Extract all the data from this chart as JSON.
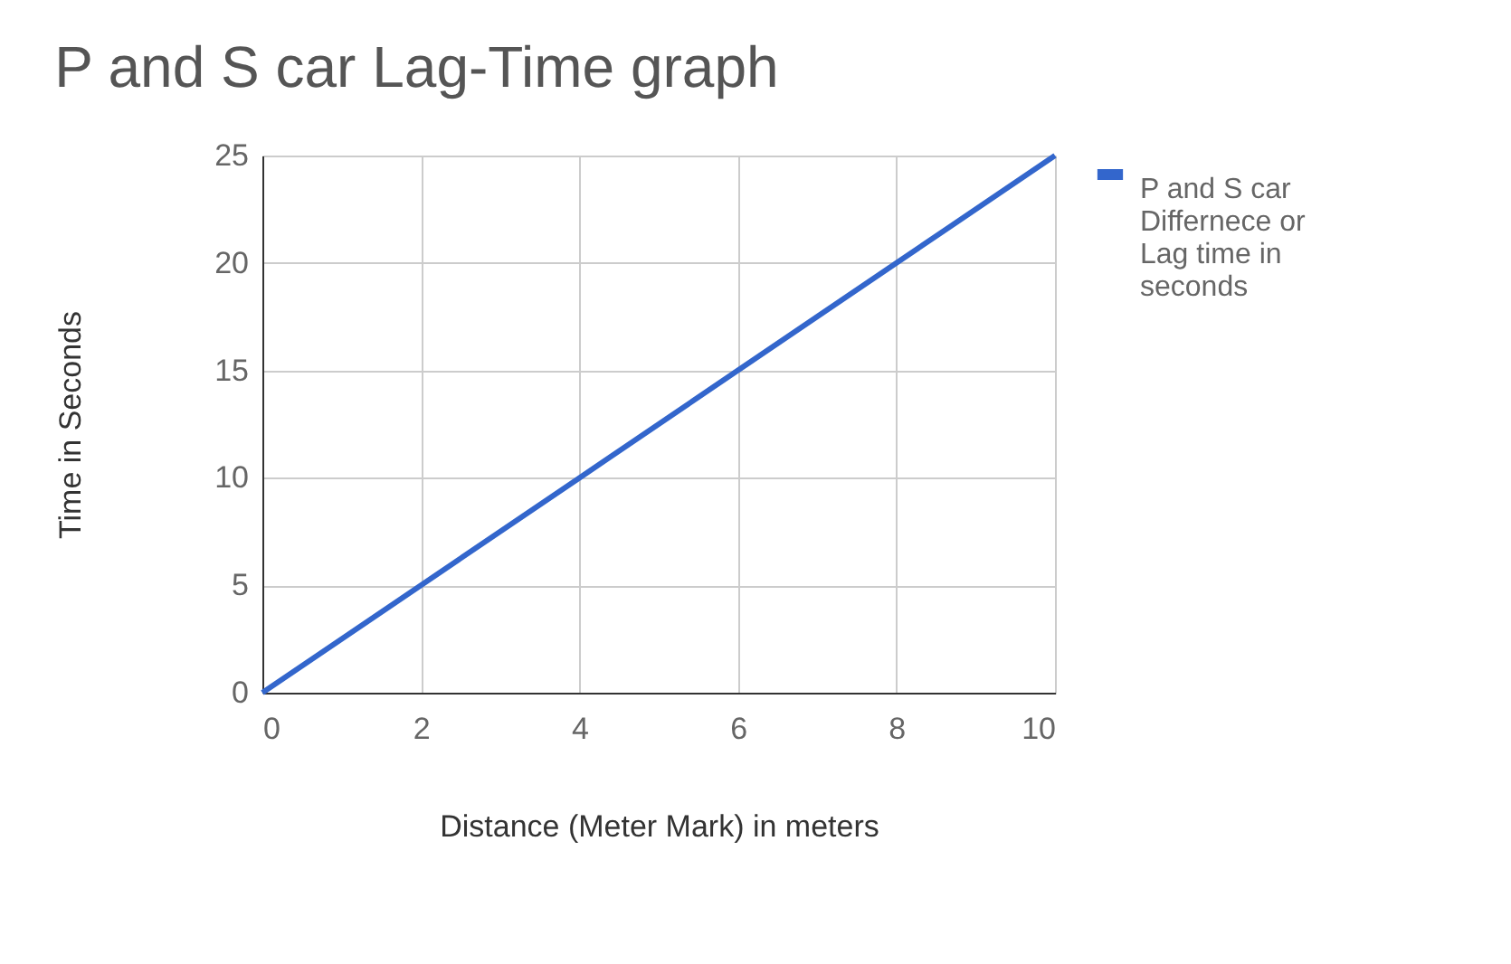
{
  "chart_data": {
    "type": "line",
    "title": "P and S car Lag-Time graph",
    "xlabel": "Distance (Meter Mark) in meters",
    "ylabel": "Time in Seconds",
    "x": [
      0,
      2,
      4,
      6,
      8,
      10
    ],
    "series": [
      {
        "name": "P and S car Differnece or Lag time in seconds",
        "color": "#3366cc",
        "values": [
          0,
          5,
          10,
          15,
          20,
          25
        ]
      }
    ],
    "xlim": [
      0,
      10
    ],
    "xticks": [
      0,
      2,
      4,
      6,
      8,
      10
    ],
    "ylim": [
      0,
      25
    ],
    "yticks": [
      0,
      5,
      10,
      15,
      20,
      25
    ],
    "grid": true,
    "legend": "right",
    "marker": "none",
    "line_style": "solid"
  }
}
